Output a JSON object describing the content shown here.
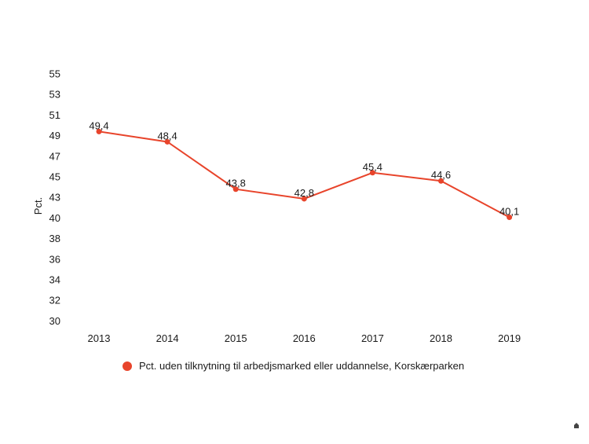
{
  "chart_data": {
    "type": "line",
    "title": "",
    "xlabel": "",
    "ylabel": "Pct.",
    "x": [
      "2013",
      "2014",
      "2015",
      "2016",
      "2017",
      "2018",
      "2019"
    ],
    "y_ticks": [
      "30",
      "32",
      "34",
      "36",
      "38",
      "40",
      "43",
      "45",
      "47",
      "49",
      "51",
      "53",
      "55"
    ],
    "series": [
      {
        "name": "Pct. uden tilknytning til arbedjsmarked eller uddannelse, Korskærparken",
        "values": [
          49.4,
          48.4,
          43.8,
          42.8,
          45.4,
          44.6,
          40.1
        ],
        "labels": [
          "49,4",
          "48,4",
          "43,8",
          "42,8",
          "45,4",
          "44,6",
          "40,1"
        ],
        "color": "#e8442b"
      }
    ],
    "grid": false,
    "legend_position": "bottom"
  }
}
